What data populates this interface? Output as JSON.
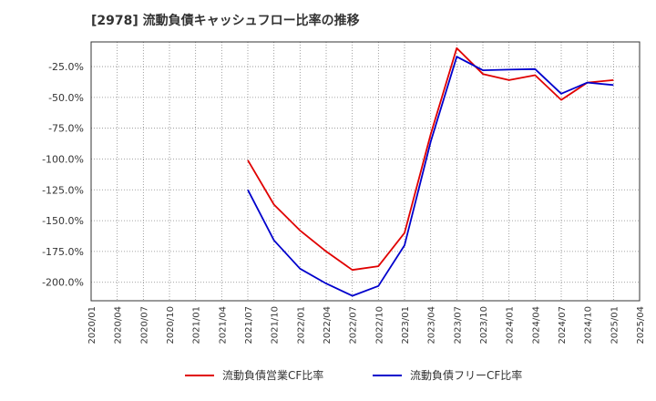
{
  "chart_data": {
    "type": "line",
    "title": "[2978]  流動負債キャッシュフロー比率の推移",
    "xlabel": "",
    "ylabel": "",
    "x": [
      "2020/01",
      "2020/04",
      "2020/07",
      "2020/10",
      "2021/01",
      "2021/04",
      "2021/07",
      "2021/10",
      "2022/01",
      "2022/04",
      "2022/07",
      "2022/10",
      "2023/01",
      "2023/04",
      "2023/07",
      "2023/10",
      "2024/01",
      "2024/04",
      "2024/07",
      "2024/10",
      "2025/01",
      "2025/04"
    ],
    "yticks": [
      "-25.0%",
      "-50.0%",
      "-75.0%",
      "-100.0%",
      "-125.0%",
      "-150.0%",
      "-175.0%",
      "-200.0%"
    ],
    "ylim": [
      -215,
      -5
    ],
    "grid": true,
    "legend_position": "bottom",
    "series": [
      {
        "name": "流動負債営業CF比率",
        "color": "#e00000",
        "points": [
          [
            "2021/07",
            -101.0
          ],
          [
            "2021/10",
            -137.0
          ],
          [
            "2022/01",
            -158.0
          ],
          [
            "2022/04",
            -175.0
          ],
          [
            "2022/07",
            -190.0
          ],
          [
            "2022/10",
            -187.0
          ],
          [
            "2023/01",
            -160.0
          ],
          [
            "2023/04",
            -80.0
          ],
          [
            "2023/07",
            -10.0
          ],
          [
            "2023/10",
            -31.0
          ],
          [
            "2024/01",
            -36.0
          ],
          [
            "2024/04",
            -32.0
          ],
          [
            "2024/07",
            -52.0
          ],
          [
            "2024/10",
            -38.0
          ],
          [
            "2025/01",
            -36.0
          ]
        ]
      },
      {
        "name": "流動負債フリーCF比率",
        "color": "#0000cc",
        "points": [
          [
            "2021/07",
            -125.0
          ],
          [
            "2021/10",
            -166.0
          ],
          [
            "2022/01",
            -189.0
          ],
          [
            "2022/04",
            -201.0
          ],
          [
            "2022/07",
            -211.0
          ],
          [
            "2022/10",
            -203.0
          ],
          [
            "2023/01",
            -170.0
          ],
          [
            "2023/04",
            -86.0
          ],
          [
            "2023/07",
            -17.0
          ],
          [
            "2023/10",
            -28.0
          ],
          [
            "2024/01",
            -27.5
          ],
          [
            "2024/04",
            -27.0
          ],
          [
            "2024/07",
            -47.0
          ],
          [
            "2024/10",
            -38.0
          ],
          [
            "2025/01",
            -40.0
          ]
        ]
      }
    ]
  }
}
